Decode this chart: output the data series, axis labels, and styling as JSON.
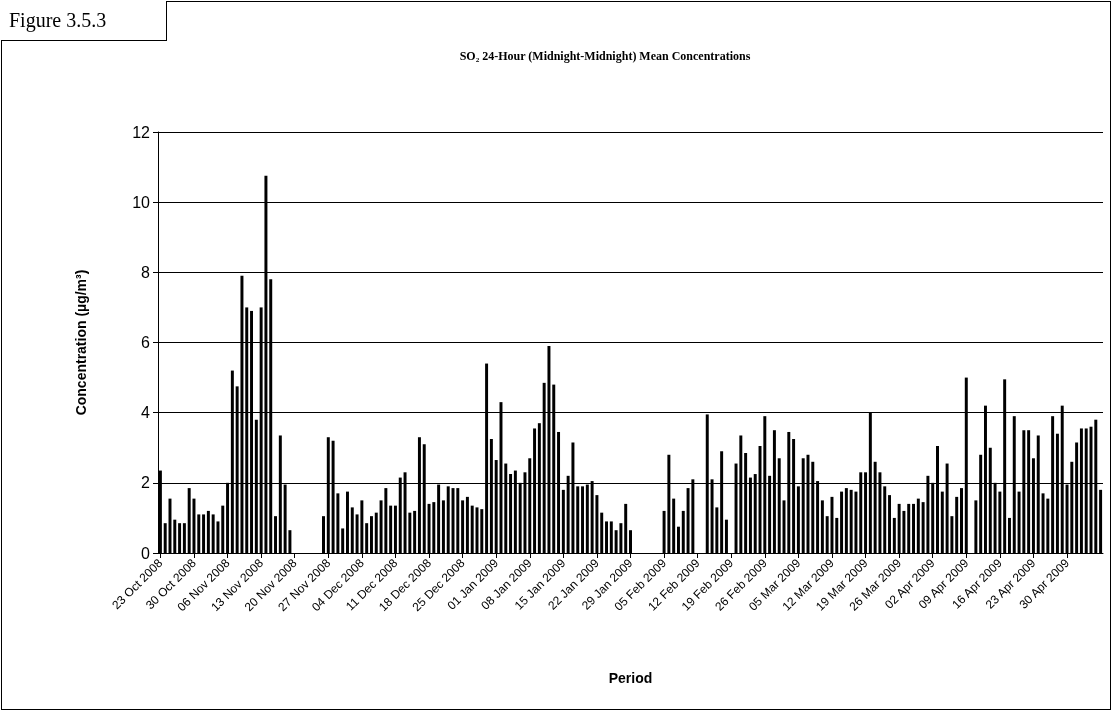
{
  "chart_data": {
    "type": "bar",
    "title": "SO₂ 24-Hour (Midnight-Midnight) Mean Concentrations",
    "xlabel": "Period",
    "ylabel": "Concentration (µg/m³)",
    "annotations": [
      "Figure 3.5.3"
    ],
    "categories": [
      "23 Oct 2008",
      null,
      null,
      null,
      null,
      null,
      null,
      "30 Oct 2008",
      null,
      null,
      null,
      null,
      null,
      null,
      "06 Nov 2008",
      null,
      null,
      null,
      null,
      null,
      null,
      "13 Nov 2008",
      null,
      null,
      null,
      null,
      null,
      null,
      "20 Nov 2008",
      null,
      null,
      null,
      null,
      null,
      null,
      "27 Nov 2008",
      null,
      null,
      null,
      null,
      null,
      null,
      "04 Dec 2008",
      null,
      null,
      null,
      null,
      null,
      null,
      "11 Dec 2008",
      null,
      null,
      null,
      null,
      null,
      null,
      "18 Dec 2008",
      null,
      null,
      null,
      null,
      null,
      null,
      "25 Dec 2008",
      null,
      null,
      null,
      null,
      null,
      null,
      "01 Jan 2009",
      null,
      null,
      null,
      null,
      null,
      null,
      "08 Jan 2009",
      null,
      null,
      null,
      null,
      null,
      null,
      "15 Jan 2009",
      null,
      null,
      null,
      null,
      null,
      null,
      "22 Jan 2009",
      null,
      null,
      null,
      null,
      null,
      null,
      "29 Jan 2009",
      null,
      null,
      null,
      null,
      null,
      null,
      "05 Feb 2009",
      null,
      null,
      null,
      null,
      null,
      null,
      "12 Feb 2009",
      null,
      null,
      null,
      null,
      null,
      null,
      "19 Feb 2009",
      null,
      null,
      null,
      null,
      null,
      null,
      "26 Feb 2009",
      null,
      null,
      null,
      null,
      null,
      null,
      "05 Mar 2009",
      null,
      null,
      null,
      null,
      null,
      null,
      "12 Mar 2009",
      null,
      null,
      null,
      null,
      null,
      null,
      "19 Mar 2009",
      null,
      null,
      null,
      null,
      null,
      null,
      "26 Mar 2009",
      null,
      null,
      null,
      null,
      null,
      null,
      "02 Apr 2009",
      null,
      null,
      null,
      null,
      null,
      null,
      "09 Apr 2009",
      null,
      null,
      null,
      null,
      null,
      null,
      "16 Apr 2009",
      null,
      null,
      null,
      null,
      null,
      null,
      "23 Apr 2009",
      null,
      null,
      null,
      null,
      null,
      null,
      "30 Apr 2009",
      null,
      null,
      null,
      null,
      null,
      null,
      null
    ],
    "values": [
      2.35,
      0.85,
      1.55,
      0.95,
      0.85,
      0.85,
      1.85,
      1.55,
      1.1,
      1.1,
      1.2,
      1.1,
      0.9,
      1.35,
      2.0,
      5.2,
      4.75,
      7.9,
      7.0,
      6.9,
      3.8,
      7.0,
      10.75,
      7.8,
      1.05,
      3.35,
      1.95,
      0.65,
      null,
      null,
      null,
      null,
      null,
      null,
      1.05,
      3.3,
      3.2,
      1.7,
      0.7,
      1.75,
      1.3,
      1.1,
      1.5,
      0.85,
      1.05,
      1.15,
      1.5,
      1.85,
      1.35,
      1.35,
      2.15,
      2.3,
      1.15,
      1.2,
      3.3,
      3.1,
      1.4,
      1.45,
      1.95,
      1.5,
      1.9,
      1.85,
      1.85,
      1.5,
      1.6,
      1.35,
      1.3,
      1.25,
      5.4,
      3.25,
      2.65,
      4.3,
      2.55,
      2.25,
      2.35,
      2.0,
      2.3,
      2.7,
      3.55,
      3.7,
      4.85,
      5.9,
      4.8,
      3.45,
      1.8,
      2.2,
      3.15,
      1.9,
      1.9,
      1.95,
      2.05,
      1.65,
      1.15,
      0.9,
      0.9,
      0.65,
      0.85,
      1.4,
      0.65,
      null,
      null,
      null,
      null,
      null,
      null,
      1.2,
      2.8,
      1.55,
      0.75,
      1.2,
      1.85,
      2.1,
      null,
      null,
      3.95,
      2.1,
      1.3,
      2.9,
      0.95,
      null,
      2.55,
      3.35,
      2.85,
      2.15,
      2.25,
      3.05,
      3.9,
      2.2,
      3.5,
      2.7,
      1.5,
      3.45,
      3.25,
      1.9,
      2.7,
      2.8,
      2.6,
      2.05,
      1.5,
      1.05,
      1.6,
      1.0,
      1.75,
      1.85,
      1.8,
      1.75,
      2.3,
      2.3,
      4.0,
      2.6,
      2.3,
      1.9,
      1.65,
      1.0,
      1.4,
      1.2,
      1.4,
      1.4,
      1.55,
      1.45,
      2.2,
      2.0,
      3.05,
      1.75,
      2.55,
      1.05,
      1.6,
      1.85,
      5.0,
      null,
      1.5,
      2.8,
      4.2,
      3.0,
      2.0,
      1.75,
      4.95,
      1.0,
      3.9,
      1.75,
      3.5,
      3.5,
      2.7,
      3.35,
      1.7,
      1.55,
      3.9,
      3.4,
      4.2,
      1.95,
      2.6,
      3.15,
      3.55,
      3.55,
      3.6,
      3.8,
      1.8
    ],
    "color": "#000000",
    "ylim": [
      0,
      12
    ],
    "yticks": [
      0,
      2,
      4,
      6,
      8,
      10,
      12
    ],
    "grid": "y"
  }
}
